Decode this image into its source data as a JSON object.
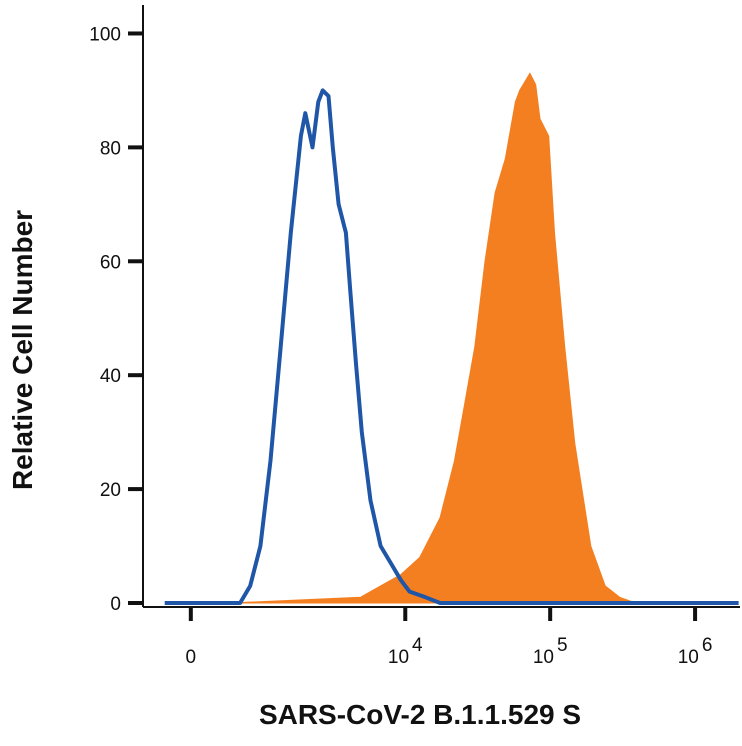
{
  "chart_data": {
    "type": "histogram-overlay",
    "x_label": "SARS-CoV-2 B.1.1.529 S",
    "y_label": "Relative Cell Number",
    "xlim": [
      2.19,
      6.31
    ],
    "xticks": [
      {
        "value": 2.52,
        "label": "0"
      },
      {
        "value": 4,
        "label": "10",
        "sup": "4"
      },
      {
        "value": 5,
        "label": "10",
        "sup": "5"
      },
      {
        "value": 6,
        "label": "10",
        "sup": "6"
      }
    ],
    "ylim": [
      0,
      105
    ],
    "yticks": [
      0,
      20,
      40,
      60,
      80,
      100
    ],
    "series": [
      {
        "style": "area",
        "color": "#f47f20",
        "x": [
          2.79,
          3.69,
          3.83,
          3.97,
          4.1,
          4.24,
          4.34,
          4.41,
          4.48,
          4.55,
          4.62,
          4.69,
          4.76,
          4.79,
          4.86,
          4.9,
          4.93,
          4.99,
          5.03,
          5.1,
          5.17,
          5.28,
          5.38,
          5.48,
          5.59
        ],
        "values": [
          0,
          1,
          3,
          5,
          8,
          15,
          25,
          35,
          45,
          60,
          72,
          78,
          88,
          90,
          93,
          91,
          85,
          82,
          65,
          45,
          28,
          10,
          3,
          1,
          0
        ]
      },
      {
        "style": "line",
        "color": "#1f56a8",
        "x": [
          2.34,
          2.86,
          2.93,
          3.0,
          3.07,
          3.14,
          3.21,
          3.28,
          3.31,
          3.36,
          3.4,
          3.43,
          3.47,
          3.5,
          3.54,
          3.59,
          3.62,
          3.66,
          3.7,
          3.76,
          3.83,
          3.9,
          3.97,
          4.03,
          4.14,
          4.24,
          6.3
        ],
        "values": [
          0,
          0,
          3,
          10,
          25,
          45,
          65,
          82,
          86,
          80,
          88,
          90,
          89,
          80,
          70,
          65,
          55,
          42,
          30,
          18,
          10,
          7,
          4,
          2,
          1,
          0,
          0
        ]
      }
    ]
  }
}
